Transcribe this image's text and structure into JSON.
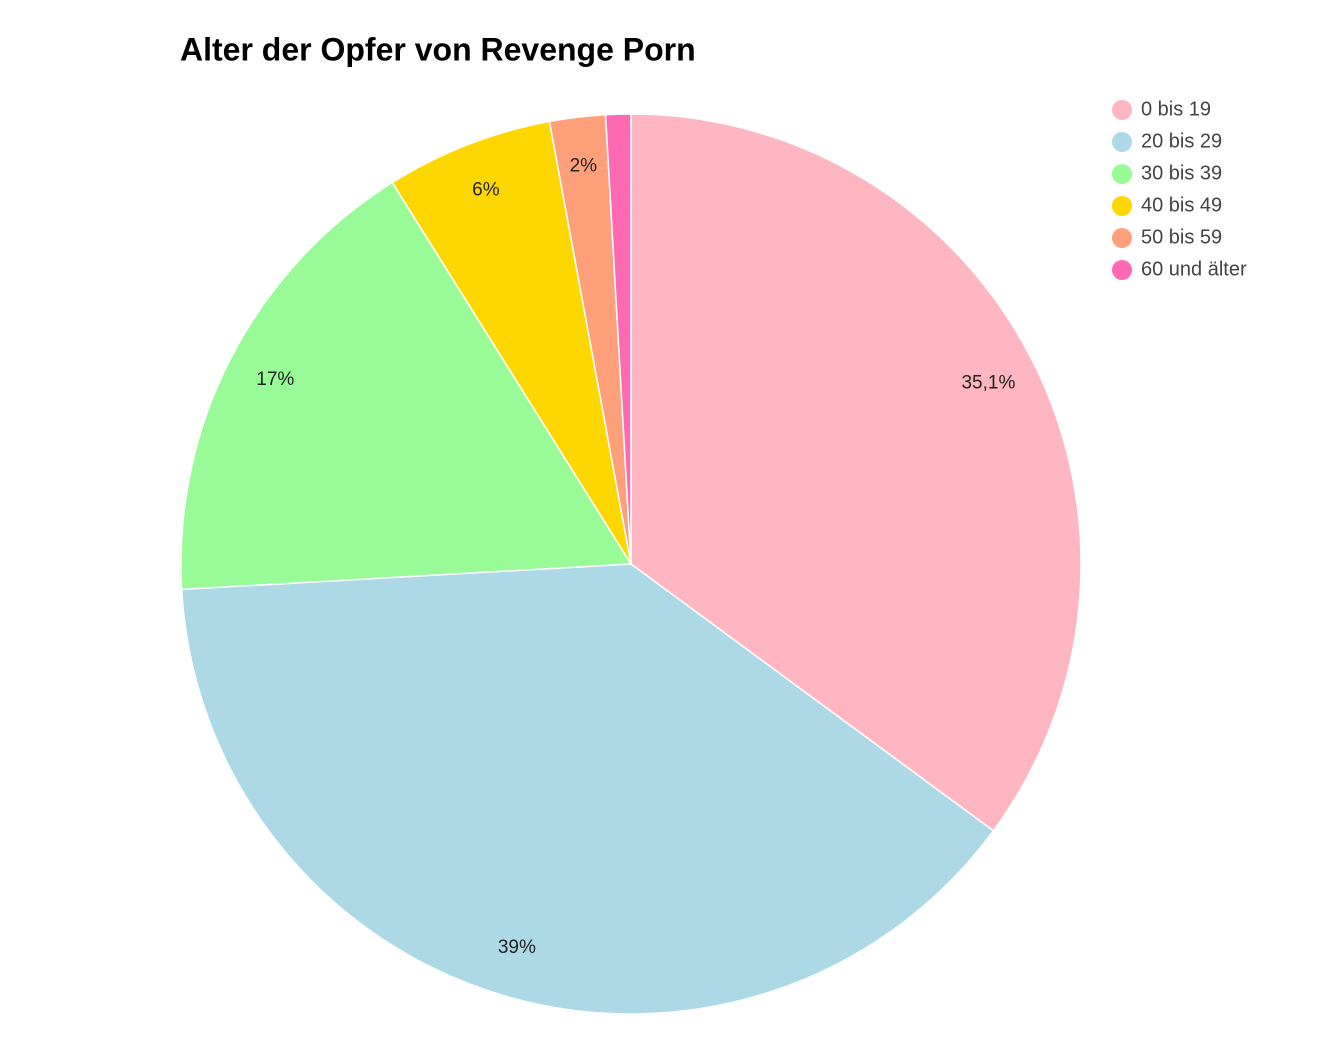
{
  "chart_data": {
    "type": "pie",
    "title": "Alter der Opfer von Revenge Porn",
    "categories": [
      "0 bis 19",
      "20 bis 29",
      "30 bis 39",
      "40 bis 49",
      "50 bis 59",
      "60 und älter"
    ],
    "values": [
      35.1,
      39,
      17,
      6,
      2,
      0.9
    ],
    "value_labels": [
      "35,1%",
      "39%",
      "17%",
      "6%",
      "2%",
      null
    ],
    "colors": [
      "#ffb6c1",
      "#add8e6",
      "#98fb98",
      "#ffd700",
      "#ffa07a",
      "#ff69b4"
    ],
    "legend": "top-right"
  }
}
